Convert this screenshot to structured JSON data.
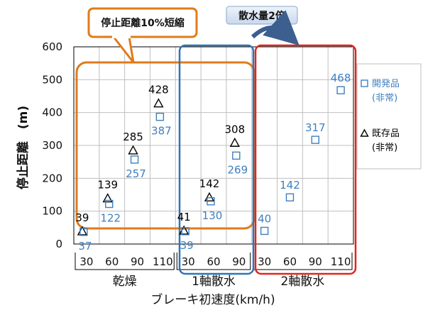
{
  "chart_data": {
    "type": "scatter",
    "title": "",
    "ylabel": "停止距離　(m)",
    "xlabel": "ブレーキ初速度(km/h)",
    "ylim": [
      0,
      600
    ],
    "yticks": [
      "0",
      "100",
      "200",
      "300",
      "400",
      "500",
      "600"
    ],
    "grid": true,
    "legend_position": "right",
    "groups": [
      {
        "label": "乾燥",
        "speeds": [
          "30",
          "60",
          "90",
          "110"
        ]
      },
      {
        "label": "1軸散水",
        "speeds": [
          "30",
          "60",
          "90"
        ]
      },
      {
        "label": "2軸散水",
        "speeds": [
          "30",
          "60",
          "90",
          "110"
        ]
      }
    ],
    "series": [
      {
        "name": "既存品\n(非常)",
        "marker": "triangle",
        "color": "#000000",
        "points": [
          {
            "group": 0,
            "speed": 0,
            "value": 39,
            "label": "39"
          },
          {
            "group": 0,
            "speed": 1,
            "value": 139,
            "label": "139"
          },
          {
            "group": 0,
            "speed": 2,
            "value": 285,
            "label": "285"
          },
          {
            "group": 0,
            "speed": 3,
            "value": 428,
            "label": "428"
          },
          {
            "group": 1,
            "speed": 0,
            "value": 41,
            "label": "41"
          },
          {
            "group": 1,
            "speed": 1,
            "value": 142,
            "label": "142"
          },
          {
            "group": 1,
            "speed": 2,
            "value": 308,
            "label": "308"
          }
        ]
      },
      {
        "name": "開発品\n(非常)",
        "marker": "square",
        "color": "#3f7fbf",
        "points": [
          {
            "group": 0,
            "speed": 0,
            "value": 37,
            "label": "37"
          },
          {
            "group": 0,
            "speed": 1,
            "value": 122,
            "label": "122"
          },
          {
            "group": 0,
            "speed": 2,
            "value": 257,
            "label": "257"
          },
          {
            "group": 0,
            "speed": 3,
            "value": 387,
            "label": "387"
          },
          {
            "group": 1,
            "speed": 0,
            "value": 39,
            "label": "39"
          },
          {
            "group": 1,
            "speed": 1,
            "value": 130,
            "label": "130"
          },
          {
            "group": 1,
            "speed": 2,
            "value": 269,
            "label": "269"
          },
          {
            "group": 2,
            "speed": 0,
            "value": 40,
            "label": "40"
          },
          {
            "group": 2,
            "speed": 1,
            "value": 142,
            "label": "142"
          },
          {
            "group": 2,
            "speed": 2,
            "value": 317,
            "label": "317"
          },
          {
            "group": 2,
            "speed": 3,
            "value": 468,
            "label": "468"
          }
        ]
      }
    ],
    "annotations": {
      "callout_orange": "停止距離10%短縮",
      "callout_blue": "散水量2倍"
    },
    "colors": {
      "orange": "#e07b1a",
      "blue": "#2e75b6",
      "red": "#e0261c",
      "dev": "#3f7fbf",
      "grid": "#bfbfbf"
    }
  }
}
